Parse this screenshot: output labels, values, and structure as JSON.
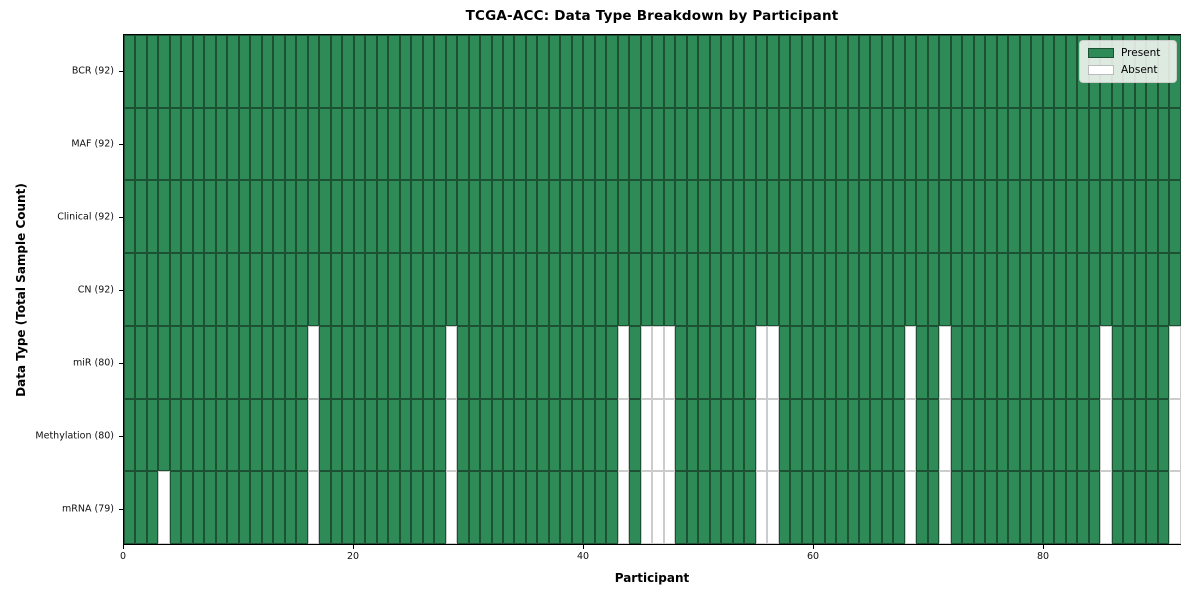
{
  "chart_data": {
    "type": "heatmap",
    "title": "TCGA-ACC: Data Type Breakdown by Participant",
    "xlabel": "Participant",
    "ylabel": "Data Type (Total Sample Count)",
    "n_participants": 92,
    "xlim": [
      0,
      92
    ],
    "x_ticks": [
      0,
      20,
      40,
      60,
      80
    ],
    "grid": false,
    "legend_position": "upper right",
    "legend": [
      {
        "label": "Present",
        "color": "#2e8b57"
      },
      {
        "label": "Absent",
        "color": "#ffffff"
      }
    ],
    "rows": [
      {
        "label": "BCR (92)",
        "data_type": "BCR",
        "total": 92,
        "absent_participants": []
      },
      {
        "label": "MAF (92)",
        "data_type": "MAF",
        "total": 92,
        "absent_participants": []
      },
      {
        "label": "Clinical (92)",
        "data_type": "Clinical",
        "total": 92,
        "absent_participants": []
      },
      {
        "label": "CN (92)",
        "data_type": "CN",
        "total": 92,
        "absent_participants": []
      },
      {
        "label": "miR (80)",
        "data_type": "miR",
        "total": 80,
        "absent_participants": [
          16,
          28,
          43,
          45,
          46,
          47,
          55,
          56,
          68,
          71,
          85,
          91
        ]
      },
      {
        "label": "Methylation (80)",
        "data_type": "Methylation",
        "total": 80,
        "absent_participants": [
          16,
          28,
          43,
          45,
          46,
          47,
          55,
          56,
          68,
          71,
          85,
          91
        ]
      },
      {
        "label": "mRNA (79)",
        "data_type": "mRNA",
        "total": 79,
        "absent_participants": [
          3,
          16,
          28,
          43,
          45,
          46,
          47,
          55,
          56,
          68,
          71,
          85,
          91
        ]
      }
    ],
    "colors": {
      "present": "#2e8b57",
      "absent": "#ffffff",
      "present_edge": "#1d5134",
      "absent_edge": "#cccccc",
      "spine": "#000000"
    }
  }
}
